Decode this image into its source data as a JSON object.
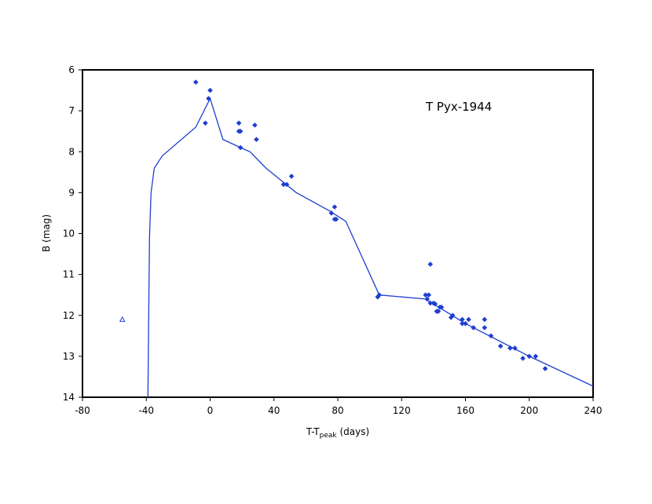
{
  "chart_data": {
    "type": "scatter",
    "title": "",
    "annotation": "T Pyx-1944",
    "xlabel": {
      "main": "T-T",
      "sub": "peak",
      "suffix": " (days)"
    },
    "ylabel": "B (mag)",
    "xlim": [
      -80,
      240
    ],
    "ylim": [
      6,
      14
    ],
    "y_inverted": true,
    "x_ticks": [
      -80,
      -40,
      0,
      40,
      80,
      120,
      160,
      200,
      240
    ],
    "y_ticks": [
      6,
      7,
      8,
      9,
      10,
      11,
      12,
      13,
      14
    ],
    "grid": false,
    "legend": "none",
    "colors": {
      "series": "#1f3fd1",
      "axis": "#000000"
    },
    "series": [
      {
        "marker": "diamond",
        "points": [
          [
            -9,
            6.3
          ],
          [
            0,
            6.5
          ],
          [
            -1,
            6.7
          ],
          [
            -3,
            7.3
          ],
          [
            18,
            7.3
          ],
          [
            18,
            7.5
          ],
          [
            19,
            7.5
          ],
          [
            28,
            7.35
          ],
          [
            29,
            7.7
          ],
          [
            19,
            7.9
          ],
          [
            51,
            8.6
          ],
          [
            46,
            8.8
          ],
          [
            48,
            8.8
          ],
          [
            78,
            9.35
          ],
          [
            76,
            9.5
          ],
          [
            78,
            9.65
          ],
          [
            79,
            9.65
          ],
          [
            105,
            11.55
          ],
          [
            106,
            11.5
          ],
          [
            138,
            10.75
          ],
          [
            135,
            11.5
          ],
          [
            137,
            11.5
          ],
          [
            136,
            11.6
          ],
          [
            138,
            11.7
          ],
          [
            140,
            11.7
          ],
          [
            141,
            11.72
          ],
          [
            144,
            11.8
          ],
          [
            145,
            11.8
          ],
          [
            142,
            11.9
          ],
          [
            143,
            11.9
          ],
          [
            152,
            12.0
          ],
          [
            151,
            12.05
          ],
          [
            158,
            12.1
          ],
          [
            162,
            12.1
          ],
          [
            158,
            12.2
          ],
          [
            160,
            12.2
          ],
          [
            165,
            12.3
          ],
          [
            172,
            12.1
          ],
          [
            172,
            12.3
          ],
          [
            176,
            12.5
          ],
          [
            182,
            12.75
          ],
          [
            188,
            12.8
          ],
          [
            191,
            12.8
          ],
          [
            200,
            13.0
          ],
          [
            204,
            13.0
          ],
          [
            196,
            13.05
          ],
          [
            210,
            13.3
          ]
        ]
      },
      {
        "marker": "open-triangle",
        "points": [
          [
            -55,
            12.1
          ]
        ]
      },
      {
        "marker": "line",
        "points": [
          [
            -39,
            14.0
          ],
          [
            -38,
            10.1
          ],
          [
            -37,
            9.0
          ],
          [
            -35,
            8.4
          ],
          [
            -30,
            8.1
          ],
          [
            -9,
            7.4
          ],
          [
            0,
            6.7
          ],
          [
            8,
            7.7
          ],
          [
            19,
            7.9
          ],
          [
            25,
            8.0
          ],
          [
            35,
            8.4
          ],
          [
            54,
            9.0
          ],
          [
            75,
            9.45
          ],
          [
            85,
            9.7
          ],
          [
            106,
            11.5
          ],
          [
            135,
            11.6
          ],
          [
            160,
            12.2
          ],
          [
            200,
            13.0
          ],
          [
            240,
            13.73
          ]
        ]
      }
    ]
  }
}
